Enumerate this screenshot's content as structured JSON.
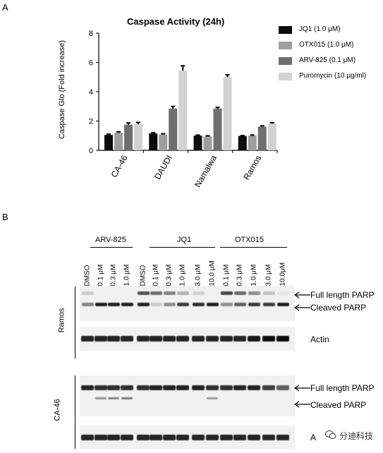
{
  "panel_a_label": "A",
  "panel_b_label": "B",
  "chart_data": {
    "type": "bar",
    "title": "Caspase  Activity (24h)",
    "ylabel": "Caspase Glo (Fold increase)",
    "xlabel": "",
    "ylim": [
      0,
      8
    ],
    "yticks": [
      0,
      2,
      4,
      6,
      8
    ],
    "categories": [
      "CA-46",
      "DAUDI",
      "Namalwa",
      "Ramos"
    ],
    "legend_position": "right",
    "grid": false,
    "series": [
      {
        "name": "JQ1 (1.0 μM)",
        "color": "#0b0b0b",
        "values": [
          1.05,
          1.15,
          1.0,
          0.98
        ],
        "errors": [
          0.05,
          0.05,
          0.04,
          0.03
        ]
      },
      {
        "name": "OTX015 (1.0 μM)",
        "color": "#9e9e9e",
        "values": [
          1.2,
          1.08,
          0.95,
          1.0
        ],
        "errors": [
          0.06,
          0.05,
          0.04,
          0.04
        ]
      },
      {
        "name": "ARV-825 (0.1 μM)",
        "color": "#6f6f6f",
        "values": [
          1.75,
          2.85,
          2.85,
          1.62
        ],
        "errors": [
          0.12,
          0.15,
          0.08,
          0.05
        ]
      },
      {
        "name": "Puromycin (10 μg/ml)",
        "color": "#d2d2d2",
        "values": [
          1.78,
          5.45,
          5.0,
          1.82
        ],
        "errors": [
          0.12,
          0.32,
          0.15,
          0.06
        ]
      }
    ]
  },
  "blot": {
    "groups": [
      {
        "label": "ARV-825"
      },
      {
        "label": "JQ1"
      },
      {
        "label": "OTX015"
      }
    ],
    "lanes": [
      "DMSO",
      "0.1 μM",
      "0.3 μM",
      "1.0 μM",
      "DMSO",
      "0.1 μM",
      "0.3 μM",
      "1.0 μM",
      "3.0 μM",
      "10.0 μM",
      "0.1 μM",
      "0.3 μM",
      "1.0 μM",
      "3.0 μM",
      "10.0μM"
    ],
    "cell_lines": [
      "Ramos",
      "CA-46"
    ],
    "band_labels": {
      "ramos_full": "Full length PARP",
      "ramos_cleaved": "Cleaved PARP",
      "ramos_actin": "Actin",
      "ca46_full": "Full length PARP",
      "ca46_cleaved": "Cleaved PARP",
      "ca46_actin": "A"
    }
  },
  "watermark": "分迪科技",
  "watermark_icon": "wechat-icon"
}
